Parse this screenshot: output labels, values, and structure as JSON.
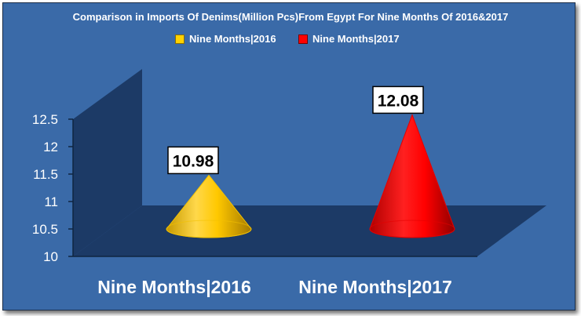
{
  "chart_data": {
    "type": "bar",
    "shape": "3d-cone",
    "title": "Comparison in Imports Of Denims(Million Pcs)From Egypt For Nine Months Of 2016&2017",
    "categories": [
      "Nine Months|2016",
      "Nine Months|2017"
    ],
    "series": [
      {
        "name": "Nine Months|2016",
        "values": [
          10.98,
          null
        ],
        "color": "#ffd200"
      },
      {
        "name": "Nine Months|2017",
        "values": [
          null,
          12.08
        ],
        "color": "#ff0000"
      }
    ],
    "values": [
      10.98,
      12.08
    ],
    "data_labels": [
      "10.98",
      "12.08"
    ],
    "ylim": [
      10,
      12.5
    ],
    "yticks": [
      "10",
      "10.5",
      "11",
      "11.5",
      "12",
      "12.5"
    ],
    "legend_position": "top",
    "grid": false,
    "colors": {
      "background": "#3a6aa8",
      "floor": "#1c3a66",
      "wall": "#1c3a66"
    }
  }
}
